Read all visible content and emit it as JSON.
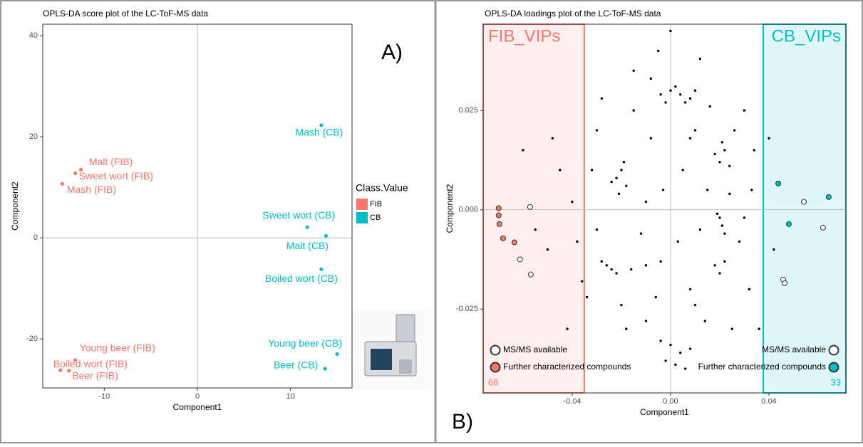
{
  "chart_data": [
    {
      "type": "scatter",
      "title": "OPLS-DA score plot of the LC-ToF-MS data",
      "xlabel": "Component1",
      "ylabel": "Component2",
      "xlim": [
        -16.6,
        16.6
      ],
      "ylim": [
        -29.7,
        42.3
      ],
      "xticks": [
        -10,
        0,
        10
      ],
      "yticks": [
        -20,
        0,
        20,
        40
      ],
      "legend_title": "Class.Value",
      "annotation": "A)",
      "series": [
        {
          "name": "FIB",
          "color": "#F8766D",
          "x": [
            -12.5,
            -13.1,
            -14.5,
            -13.1,
            -14.7,
            -13.8
          ],
          "y": [
            13.5,
            12.8,
            10.7,
            -24.2,
            -26.2,
            -26.3
          ],
          "labels": [
            "Malt (FIB)",
            "Sweet wort (FIB)",
            "Mash (FIB)",
            "Young beer (FIB)",
            "Boiled wort (FIB)",
            "Beer (FIB)"
          ]
        },
        {
          "name": "CB",
          "color": "#00BFC4",
          "x": [
            13.3,
            11.8,
            13.8,
            13.3,
            15.0,
            13.7
          ],
          "y": [
            22.3,
            2.1,
            0.4,
            -6.2,
            -23.0,
            -25.9
          ],
          "labels": [
            "Mash (CB)",
            "Sweet wort (CB)",
            "Malt (CB)",
            "Boiled wort (CB)",
            "Young beer (CB)",
            "Beer (CB)"
          ]
        }
      ]
    },
    {
      "type": "scatter",
      "title": "OPLS-DA loadings plot of the LC-ToF-MS data",
      "xlabel": "Component1",
      "ylabel": "Component2",
      "xlim": [
        -0.0762,
        0.0713
      ],
      "ylim": [
        -0.0461,
        0.0467
      ],
      "xticks": [
        -0.04,
        {
          "value": 0,
          "label": "0.00"
        },
        0.04
      ],
      "yticks": [
        -0.025,
        {
          "value": 0,
          "label": "0.000"
        },
        0.025
      ],
      "annotation": "B)",
      "legend": [
        "MS/MS available",
        "Further characterized compounds"
      ],
      "regions": [
        {
          "label": "FIB_VIPs",
          "xlim": [
            -0.0762,
            -0.0351
          ],
          "count": 68,
          "color": "#F8766D"
        },
        {
          "label": "CB_VIPs",
          "xlim": [
            0.0377,
            0.0713
          ],
          "count": 33,
          "color": "#00BFC4"
        }
      ],
      "series": [
        {
          "color": "#000000",
          "marker": "dot",
          "x": [
            0.0,
            0.004,
            0.008,
            0.002,
            -0.004,
            0.01,
            0.006,
            -0.002,
            -0.022,
            -0.02,
            -0.018,
            -0.024,
            -0.021,
            -0.019,
            0.02,
            0.022,
            0.018,
            0.024,
            0.021,
            0.02,
            0.021,
            0.019,
            0.022,
            -0.026,
            -0.024,
            -0.022,
            -0.028,
            -0.016,
            -0.01,
            -0.004,
            0.018,
            0.02,
            0.022,
            0.0,
            0.004,
            -0.004,
            0.008,
            0.002,
            0.006,
            -0.002,
            -0.03,
            -0.015,
            -0.005,
            0.012,
            0.03,
            0.033,
            0.032,
            0.025,
            -0.01,
            -0.03,
            -0.034,
            -0.04,
            -0.045,
            -0.05,
            -0.055,
            -0.06,
            -0.048,
            -0.036,
            0.01,
            -0.008,
            0.005,
            -0.01,
            0.012,
            -0.012,
            0.008,
            -0.006,
            0.015,
            -0.015,
            0.028,
            -0.028,
            0.014,
            -0.018,
            0.04,
            0.042,
            0.036,
            -0.042,
            0.0,
            0.008,
            -0.003,
            0.003,
            0.026,
            -0.032,
            0.034,
            -0.008,
            0.016,
            -0.02,
            0.01,
            0.03,
            -0.038,
            0.024
          ],
          "y": [
            0.03,
            0.029,
            0.028,
            0.031,
            0.029,
            0.03,
            0.027,
            0.027,
            0.008,
            0.01,
            0.006,
            0.007,
            0.004,
            0.012,
            0.012,
            0.015,
            0.014,
            0.011,
            0.017,
            -0.002,
            -0.004,
            -0.001,
            -0.006,
            -0.014,
            -0.015,
            -0.016,
            -0.013,
            -0.015,
            -0.014,
            -0.013,
            -0.014,
            -0.016,
            -0.013,
            -0.034,
            -0.036,
            -0.033,
            -0.035,
            -0.039,
            -0.04,
            -0.038,
            0.02,
            0.035,
            0.04,
            0.038,
            0.025,
            0.005,
            -0.02,
            -0.03,
            -0.028,
            -0.005,
            -0.022,
            0.002,
            0.01,
            -0.01,
            -0.005,
            0.015,
            0.018,
            -0.018,
            0.02,
            0.018,
            0.01,
            0.002,
            -0.005,
            -0.006,
            -0.02,
            -0.022,
            0.005,
            0.025,
            -0.008,
            0.028,
            -0.028,
            -0.03,
            0.018,
            -0.01,
            -0.03,
            -0.03,
            0.045,
            0.018,
            0.005,
            -0.008,
            0.02,
            0.01,
            0.015,
            0.033,
            0.026,
            -0.024,
            -0.024,
            -0.002,
            -0.008,
            0.004
          ]
        },
        {
          "color": "#F8766D",
          "marker": "filled",
          "x": [
            -0.0699,
            -0.0699,
            -0.0696,
            -0.0681,
            -0.0635
          ],
          "y": [
            0.0004,
            -0.0014,
            -0.0036,
            -0.0072,
            -0.0082
          ]
        },
        {
          "color": "#F8766D",
          "marker": "open",
          "x": [
            -0.0571,
            -0.0612,
            -0.0568
          ],
          "y": [
            0.0007,
            -0.0125,
            -0.0163
          ]
        },
        {
          "color": "#00BFC4",
          "marker": "filled",
          "x": [
            0.0438,
            0.0481,
            0.0643
          ],
          "y": [
            0.0066,
            -0.0036,
            0.0032
          ]
        },
        {
          "color": "#00BFC4",
          "marker": "open",
          "x": [
            0.0542,
            0.062,
            0.0458,
            0.0464
          ],
          "y": [
            0.002,
            -0.0045,
            -0.0176,
            -0.0185
          ]
        }
      ]
    }
  ]
}
